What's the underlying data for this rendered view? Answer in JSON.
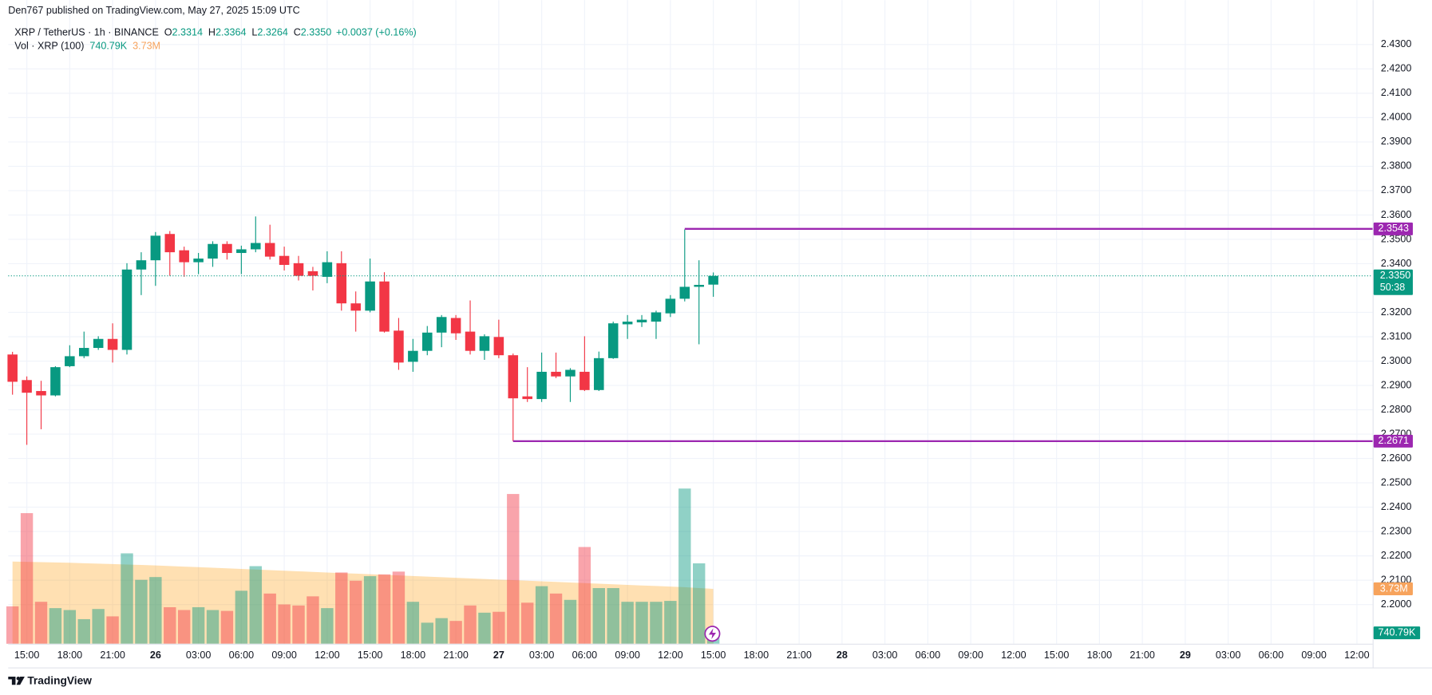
{
  "chart_data": {
    "type": "candlestick",
    "publisher_line": "Den767 published on TradingView.com, May 27, 2025 15:09 UTC",
    "symbol": "XRP / TetherUS · 1h · BINANCE",
    "ohlc_legend": [
      {
        "letter": "O",
        "label": "2.3314"
      },
      {
        "letter": "H",
        "label": "2.3364"
      },
      {
        "letter": "L",
        "label": "2.3264"
      },
      {
        "letter": "C",
        "label": "2.3350"
      }
    ],
    "change_label": "+0.0037 (+0.16%)",
    "volume_title": "Vol · XRP (100)",
    "countdown": "50:38",
    "footer": "TradingView",
    "up_color": "#089981",
    "down_color": "#f23645",
    "volume_ma_color": "#ff9800",
    "level_color": "#9c27b0",
    "grid": true,
    "x": [
      0,
      1,
      2,
      3,
      4,
      5,
      6,
      7,
      8,
      9,
      10,
      11,
      12,
      13,
      14,
      15,
      16,
      17,
      18,
      19,
      20,
      21,
      22,
      23,
      24,
      25,
      26,
      27,
      28,
      29,
      30,
      31,
      32,
      33,
      34,
      35,
      36,
      37,
      38,
      39,
      40,
      41,
      42,
      43,
      44,
      45,
      46,
      47,
      48,
      49
    ],
    "open": [
      2.3027,
      2.2922,
      2.2877,
      2.2859,
      2.2979,
      2.302,
      2.3054,
      2.3091,
      2.3046,
      2.3376,
      2.3414,
      2.3522,
      2.3455,
      2.3406,
      2.3421,
      2.3481,
      2.3444,
      2.3459,
      2.3485,
      2.3432,
      2.3402,
      2.3369,
      2.3346,
      2.3402,
      2.3237,
      2.3207,
      2.3327,
      2.3125,
      2.2997,
      2.3042,
      2.3117,
      2.3177,
      2.3121,
      2.3042,
      2.3099,
      2.3024,
      2.2855,
      2.2844,
      2.2956,
      2.2937,
      2.2956,
      2.2881,
      2.3012,
      2.3151,
      2.3159,
      2.3162,
      2.3196,
      2.3256,
      2.3305,
      2.3314
    ],
    "high": [
      2.3038,
      2.2937,
      2.2919,
      2.2979,
      2.3065,
      2.3121,
      2.3102,
      2.3155,
      2.3402,
      2.3447,
      2.353,
      2.3534,
      2.347,
      2.3444,
      2.3492,
      2.3492,
      2.3474,
      2.3594,
      2.356,
      2.347,
      2.3432,
      2.3387,
      2.3451,
      2.3451,
      2.3286,
      2.3421,
      2.3365,
      2.3177,
      2.3091,
      2.3144,
      2.3189,
      2.3189,
      2.3249,
      2.311,
      2.317,
      2.3031,
      2.2975,
      2.3035,
      2.3035,
      2.2971,
      2.3102,
      2.3039,
      2.3162,
      2.3189,
      2.3189,
      2.3207,
      2.3271,
      2.3541,
      2.3414,
      2.3364
    ],
    "low": [
      2.2862,
      2.2656,
      2.272,
      2.2855,
      2.2975,
      2.3012,
      2.3046,
      2.2994,
      2.3027,
      2.3271,
      2.3309,
      2.335,
      2.3346,
      2.3357,
      2.3387,
      2.3417,
      2.3357,
      2.3447,
      2.3417,
      2.3372,
      2.3331,
      2.329,
      2.332,
      2.3207,
      2.3121,
      2.32,
      2.3117,
      2.2964,
      2.2956,
      2.3024,
      2.3057,
      2.3087,
      2.3027,
      2.3005,
      2.3012,
      2.2671,
      2.2832,
      2.2832,
      2.293,
      2.2832,
      2.2877,
      2.2877,
      2.3009,
      2.3091,
      2.314,
      2.3091,
      2.3181,
      2.3245,
      2.3069,
      2.3264
    ],
    "close": [
      2.2915,
      2.287,
      2.2859,
      2.2975,
      2.302,
      2.3054,
      2.3091,
      2.3046,
      2.3376,
      2.3414,
      2.3515,
      2.3447,
      2.3406,
      2.3421,
      2.3481,
      2.3444,
      2.3459,
      2.3485,
      2.3429,
      2.3395,
      2.335,
      2.335,
      2.3406,
      2.3237,
      2.3207,
      2.3327,
      2.3121,
      2.2994,
      2.3042,
      2.3117,
      2.3181,
      2.3114,
      2.3042,
      2.3102,
      2.3024,
      2.2847,
      2.2844,
      2.2956,
      2.2937,
      2.2964,
      2.2881,
      2.3012,
      2.3155,
      2.3162,
      2.317,
      2.32,
      2.3256,
      2.3305,
      2.3313,
      2.335
    ],
    "volume": {
      "values": [
        2.54,
        8.87,
        2.85,
        2.42,
        2.29,
        1.67,
        2.36,
        1.86,
        6.14,
        4.34,
        4.53,
        2.48,
        2.29,
        2.48,
        2.29,
        2.23,
        3.6,
        5.27,
        3.41,
        2.67,
        2.6,
        3.22,
        2.42,
        4.84,
        4.28,
        4.59,
        4.71,
        4.9,
        2.85,
        1.43,
        1.74,
        1.55,
        2.6,
        2.11,
        2.17,
        10.17,
        2.79,
        3.91,
        3.41,
        2.98,
        6.57,
        3.78,
        3.78,
        2.85,
        2.85,
        2.85,
        2.91,
        10.54,
        5.46,
        0.74079
      ],
      "last_label": "740.79K"
    },
    "volume_ma": {
      "values": [
        5.58,
        5.56,
        5.54,
        5.52,
        5.5,
        5.47,
        5.44,
        5.41,
        5.38,
        5.35,
        5.32,
        5.28,
        5.24,
        5.2,
        5.16,
        5.12,
        5.08,
        5.04,
        5.0,
        4.96,
        4.92,
        4.88,
        4.84,
        4.8,
        4.76,
        4.72,
        4.68,
        4.64,
        4.6,
        4.56,
        4.52,
        4.48,
        4.44,
        4.4,
        4.36,
        4.32,
        4.28,
        4.24,
        4.2,
        4.16,
        4.12,
        4.08,
        4.04,
        4.0,
        3.96,
        3.92,
        3.88,
        3.84,
        3.78,
        3.73
      ],
      "last_label": "3.73M"
    },
    "levels": [
      {
        "value": 2.3543,
        "start": 47
      },
      {
        "value": 2.2671,
        "start": 35
      }
    ],
    "ylim": [
      2.1839,
      2.44
    ],
    "yticks": [
      {
        "value": 2.43,
        "label": "2.4300"
      },
      {
        "value": 2.42,
        "label": "2.4200"
      },
      {
        "value": 2.41,
        "label": "2.4100"
      },
      {
        "value": 2.4,
        "label": "2.4000"
      },
      {
        "value": 2.39,
        "label": "2.3900"
      },
      {
        "value": 2.38,
        "label": "2.3800"
      },
      {
        "value": 2.37,
        "label": "2.3700"
      },
      {
        "value": 2.36,
        "label": "2.3600"
      },
      {
        "value": 2.35,
        "label": "2.3500"
      },
      {
        "value": 2.34,
        "label": "2.3400"
      },
      {
        "value": 2.32,
        "label": "2.3200"
      },
      {
        "value": 2.31,
        "label": "2.3100"
      },
      {
        "value": 2.3,
        "label": "2.3000"
      },
      {
        "value": 2.29,
        "label": "2.2900"
      },
      {
        "value": 2.28,
        "label": "2.2800"
      },
      {
        "value": 2.27,
        "label": "2.2700"
      },
      {
        "value": 2.26,
        "label": "2.2600"
      },
      {
        "value": 2.25,
        "label": "2.2500"
      },
      {
        "value": 2.24,
        "label": "2.2400"
      },
      {
        "value": 2.23,
        "label": "2.2300"
      },
      {
        "value": 2.22,
        "label": "2.2200"
      },
      {
        "value": 2.21,
        "label": "2.2100"
      },
      {
        "value": 2.2,
        "label": "2.2000"
      }
    ],
    "xlim": [
      -0.3,
      95.1
    ],
    "xticks": [
      {
        "value": 1,
        "label": "15:00"
      },
      {
        "value": 4,
        "label": "18:00"
      },
      {
        "value": 7,
        "label": "21:00"
      },
      {
        "value": 10,
        "label": "26"
      },
      {
        "value": 13,
        "label": "03:00"
      },
      {
        "value": 16,
        "label": "06:00"
      },
      {
        "value": 19,
        "label": "09:00"
      },
      {
        "value": 22,
        "label": "12:00"
      },
      {
        "value": 25,
        "label": "15:00"
      },
      {
        "value": 28,
        "label": "18:00"
      },
      {
        "value": 31,
        "label": "21:00"
      },
      {
        "value": 34,
        "label": "27"
      },
      {
        "value": 37,
        "label": "03:00"
      },
      {
        "value": 40,
        "label": "06:00"
      },
      {
        "value": 43,
        "label": "09:00"
      },
      {
        "value": 46,
        "label": "12:00"
      },
      {
        "value": 49,
        "label": "15:00"
      },
      {
        "value": 52,
        "label": "18:00"
      },
      {
        "value": 55,
        "label": "21:00"
      },
      {
        "value": 58,
        "label": "28"
      },
      {
        "value": 61,
        "label": "03:00"
      },
      {
        "value": 64,
        "label": "06:00"
      },
      {
        "value": 67,
        "label": "09:00"
      },
      {
        "value": 70,
        "label": "12:00"
      },
      {
        "value": 73,
        "label": "15:00"
      },
      {
        "value": 76,
        "label": "18:00"
      },
      {
        "value": 79,
        "label": "21:00"
      },
      {
        "value": 82,
        "label": "29"
      },
      {
        "value": 85,
        "label": "03:00"
      },
      {
        "value": 88,
        "label": "06:00"
      },
      {
        "value": 91,
        "label": "09:00"
      },
      {
        "value": 94,
        "label": "12:00"
      }
    ]
  }
}
